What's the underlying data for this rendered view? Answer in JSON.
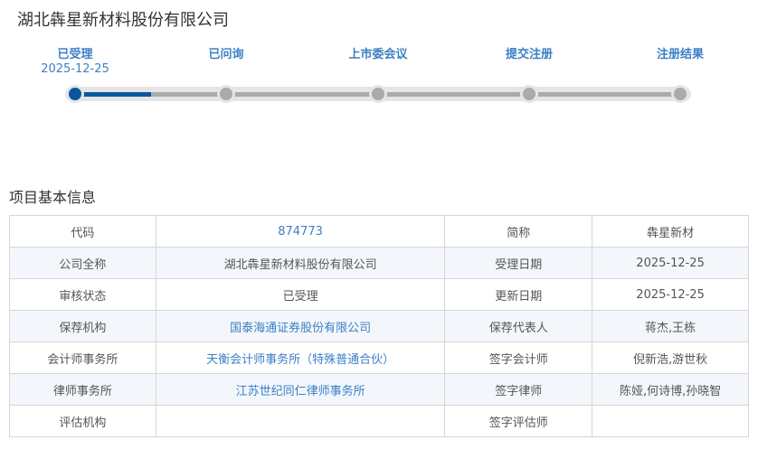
{
  "company_title": "湖北犇星新材料股份有限公司",
  "progress": {
    "steps": [
      {
        "label": "已受理",
        "date": "2025-12-25",
        "status": "completed"
      },
      {
        "label": "已问询",
        "date": "",
        "status": "pending"
      },
      {
        "label": "上市委会议",
        "date": "",
        "status": "pending"
      },
      {
        "label": "提交注册",
        "date": "",
        "status": "pending"
      },
      {
        "label": "注册结果",
        "date": "",
        "status": "pending"
      }
    ],
    "active_color": "#0a57a0"
  },
  "section_title": "项目基本信息",
  "info_rows": [
    [
      "代码",
      "874773",
      "简称",
      "犇星新材"
    ],
    [
      "公司全称",
      "湖北犇星新材料股份有限公司",
      "受理日期",
      "2025-12-25"
    ],
    [
      "审核状态",
      "已受理",
      "更新日期",
      "2025-12-25"
    ],
    [
      "保荐机构",
      "国泰海通证券股份有限公司",
      "保荐代表人",
      "蒋杰,王栋"
    ],
    [
      "会计师事务所",
      "天衡会计师事务所（特殊普通合伙）",
      "签字会计师",
      "倪新浩,游世秋"
    ],
    [
      "律师事务所",
      "江苏世纪同仁律师事务所",
      "签字律师",
      "陈娅,何诗博,孙晓智"
    ],
    [
      "评估机构",
      "",
      "签字评估师",
      ""
    ]
  ]
}
